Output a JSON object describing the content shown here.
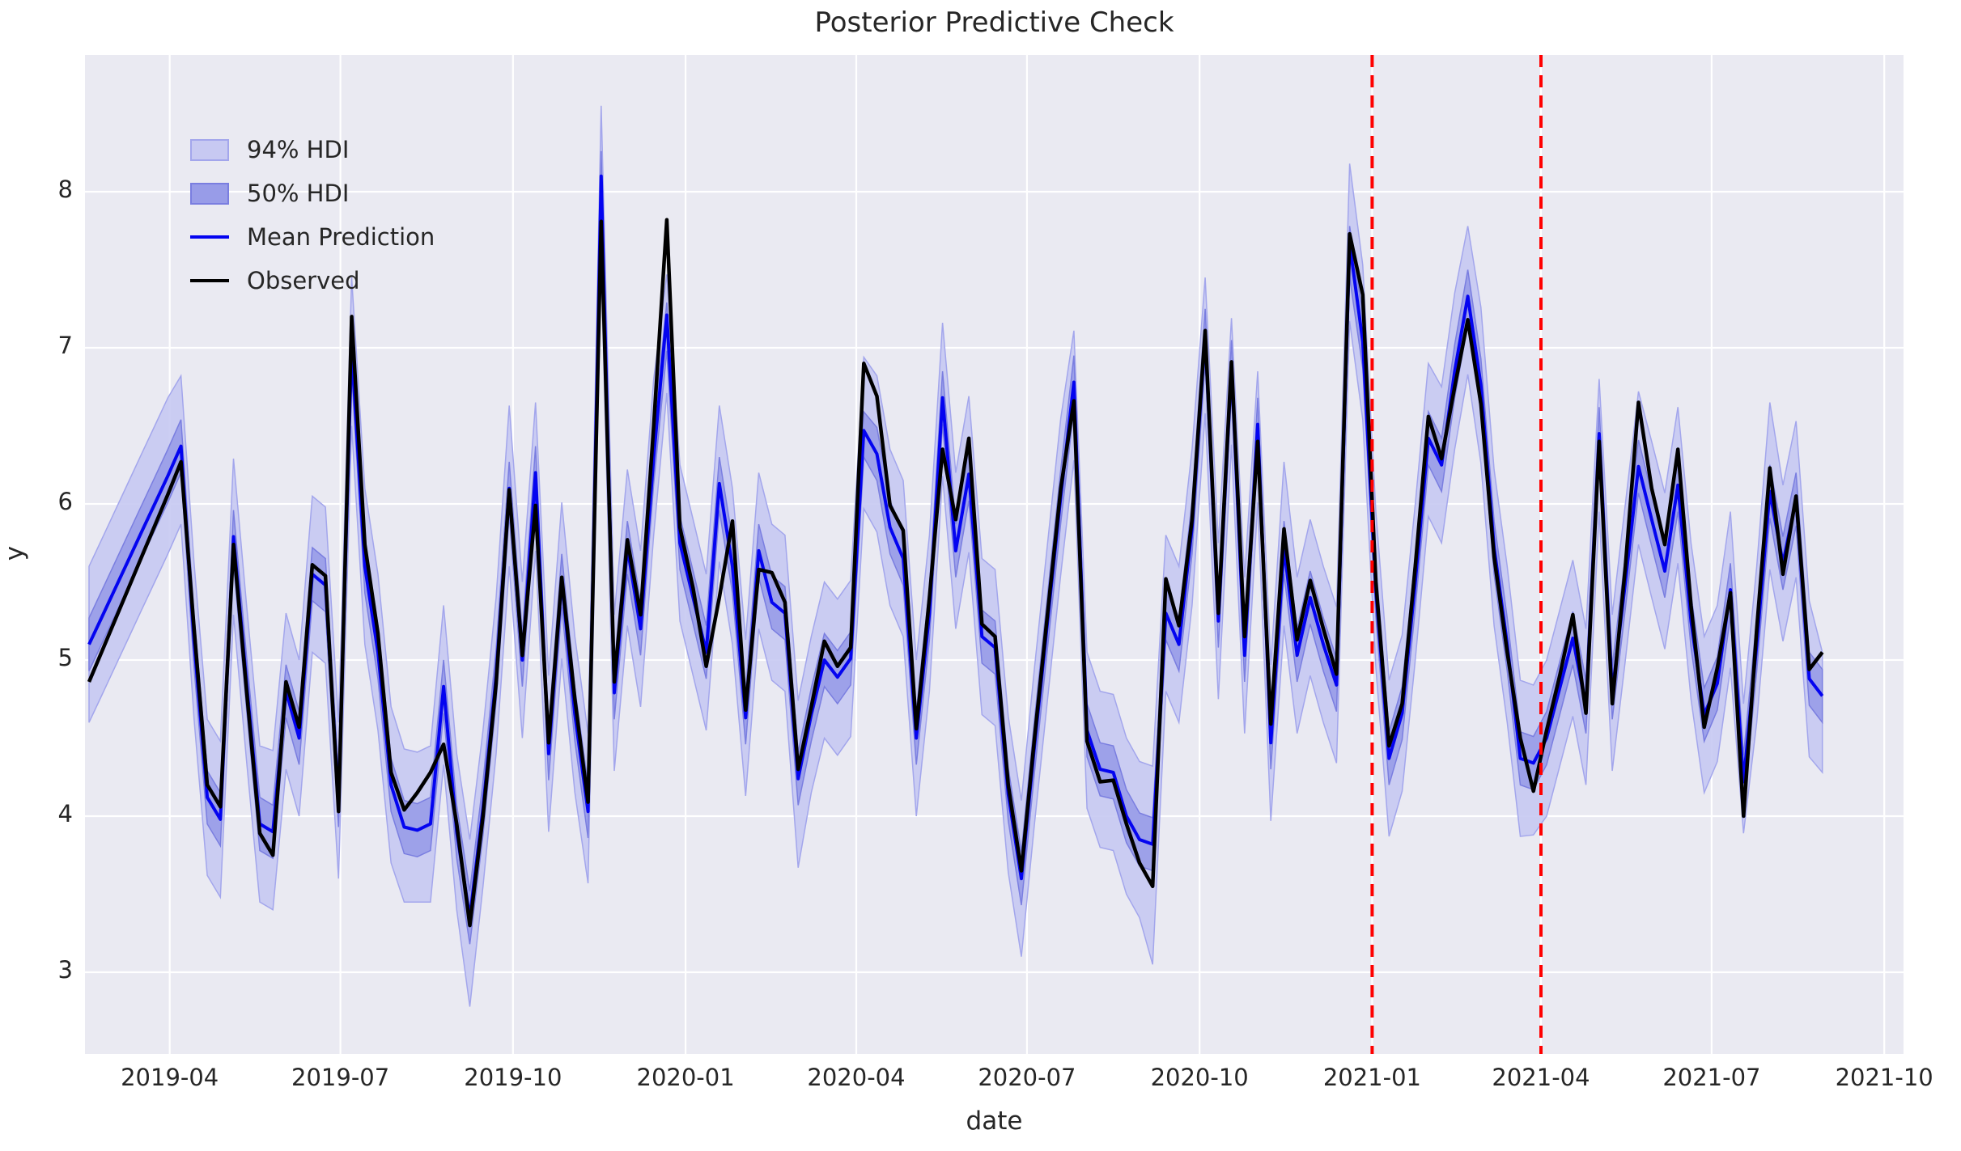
{
  "title": "Posterior Predictive Check",
  "axes": {
    "xlabel": "date",
    "ylabel": "y",
    "yticks": [
      8,
      7,
      6,
      5,
      4,
      3
    ],
    "xticks": [
      {
        "label": "2019-04",
        "date": "2019-04-01"
      },
      {
        "label": "2019-07",
        "date": "2019-07-01"
      },
      {
        "label": "2019-10",
        "date": "2019-10-01"
      },
      {
        "label": "2020-01",
        "date": "2020-01-01"
      },
      {
        "label": "2020-04",
        "date": "2020-04-01"
      },
      {
        "label": "2020-07",
        "date": "2020-07-01"
      },
      {
        "label": "2020-10",
        "date": "2020-10-01"
      },
      {
        "label": "2021-01",
        "date": "2021-01-01"
      },
      {
        "label": "2021-04",
        "date": "2021-04-01"
      },
      {
        "label": "2021-07",
        "date": "2021-07-01"
      },
      {
        "label": "2021-10",
        "date": "2021-10-01"
      }
    ]
  },
  "legend": [
    {
      "label": "94% HDI",
      "type": "patch",
      "fill": "#c7c9f2",
      "stroke": "#a3a6ec"
    },
    {
      "label": "50% HDI",
      "type": "patch",
      "fill": "#989ce8",
      "stroke": "#7a7ee0"
    },
    {
      "label": "Mean Prediction",
      "type": "line",
      "color": "#0404f0"
    },
    {
      "label": "Observed",
      "type": "line",
      "color": "#000000"
    }
  ],
  "colors": {
    "plot_bg": "#eaeaf2",
    "grid": "#ffffff",
    "hdi94_fill": "#c7c9f2",
    "hdi94_edge": "#a3a6ec",
    "hdi50_fill": "#989ce8",
    "hdi50_edge": "#7a7ee0",
    "mean_line": "#0404f0",
    "observed_line": "#000000",
    "event_line": "#ff0000",
    "text": "#262626"
  },
  "event_lines": {
    "dates": [
      "2021-01-01",
      "2021-04-01"
    ],
    "style": "dashed"
  },
  "chart_data": {
    "type": "line",
    "title": "Posterior Predictive Check",
    "xlabel": "date",
    "ylabel": "y",
    "ylim": [
      2.48,
      8.88
    ],
    "x_start_date": "2019-02-17",
    "x_freq_days": 7,
    "n_points": 133,
    "legend_position": "upper left",
    "grid": true,
    "series": [
      {
        "name": "Observed",
        "values": [
          4.86,
          5.06,
          5.26,
          5.46,
          5.66,
          5.86,
          6.06,
          6.27,
          5.2,
          4.2,
          4.06,
          5.74,
          4.8,
          3.89,
          3.75,
          4.86,
          4.57,
          5.61,
          5.54,
          4.03,
          7.2,
          5.74,
          5.17,
          4.28,
          4.04,
          4.15,
          4.28,
          4.46,
          3.95,
          3.3,
          4.0,
          4.85,
          6.09,
          5.03,
          5.99,
          4.47,
          5.53,
          4.75,
          4.09,
          7.81,
          4.86,
          5.77,
          5.29,
          6.5,
          7.82,
          5.85,
          5.46,
          4.96,
          5.4,
          5.89,
          4.68,
          5.58,
          5.56,
          5.37,
          4.3,
          4.7,
          5.12,
          4.96,
          5.08,
          6.9,
          6.69,
          5.99,
          5.83,
          4.56,
          5.4,
          6.35,
          5.9,
          6.42,
          5.23,
          5.15,
          4.2,
          3.65,
          4.5,
          5.3,
          6.1,
          6.66,
          4.48,
          4.22,
          4.23,
          3.95,
          3.7,
          3.55,
          5.52,
          5.22,
          5.9,
          7.11,
          5.3,
          6.91,
          5.15,
          6.4,
          4.59,
          5.84,
          5.13,
          5.51,
          5.2,
          4.91,
          7.73,
          7.34,
          5.5,
          4.45,
          4.72,
          5.6,
          6.56,
          6.29,
          6.75,
          7.18,
          6.64,
          5.66,
          5.05,
          4.5,
          4.16,
          4.55,
          4.9,
          5.29,
          4.66,
          6.4,
          4.72,
          5.6,
          6.65,
          6.1,
          5.74,
          6.35,
          5.35,
          4.57,
          4.95,
          5.43,
          4.0,
          5.2,
          6.23,
          5.55,
          6.05,
          4.94,
          5.05
        ]
      },
      {
        "name": "Mean Prediction",
        "values": [
          5.1,
          5.28,
          5.46,
          5.64,
          5.82,
          6.0,
          6.18,
          6.37,
          5.12,
          4.12,
          3.98,
          5.79,
          4.85,
          3.95,
          3.9,
          4.8,
          4.5,
          5.55,
          5.48,
          4.1,
          7.0,
          5.6,
          5.05,
          4.2,
          3.93,
          3.91,
          3.95,
          4.83,
          3.9,
          3.35,
          4.05,
          4.9,
          6.1,
          5.0,
          6.2,
          4.4,
          5.51,
          4.65,
          4.03,
          8.1,
          4.79,
          5.72,
          5.2,
          6.3,
          7.21,
          5.75,
          5.4,
          5.05,
          6.13,
          5.6,
          4.63,
          5.7,
          5.37,
          5.3,
          4.24,
          4.65,
          5.0,
          4.89,
          5.01,
          6.47,
          6.32,
          5.85,
          5.65,
          4.5,
          5.3,
          6.68,
          5.7,
          6.19,
          5.15,
          5.08,
          4.14,
          3.6,
          4.45,
          5.25,
          6.05,
          6.78,
          4.55,
          4.3,
          4.28,
          4.0,
          3.85,
          3.82,
          5.3,
          5.1,
          5.85,
          7.08,
          5.25,
          6.88,
          5.03,
          6.51,
          4.47,
          5.72,
          5.03,
          5.4,
          5.1,
          4.84,
          7.67,
          7.04,
          5.45,
          4.37,
          4.66,
          5.5,
          6.42,
          6.25,
          6.85,
          7.33,
          6.76,
          5.72,
          5.1,
          4.37,
          4.34,
          4.5,
          4.82,
          5.14,
          4.7,
          6.45,
          4.79,
          5.5,
          6.24,
          5.9,
          5.57,
          6.12,
          5.25,
          4.65,
          4.85,
          5.45,
          4.22,
          5.1,
          6.08,
          5.62,
          6.03,
          4.88,
          4.77
        ]
      }
    ],
    "bands": {
      "hdi94": {
        "lo": [
          4.6,
          4.78,
          4.96,
          5.14,
          5.32,
          5.5,
          5.68,
          5.87,
          4.62,
          3.62,
          3.48,
          5.29,
          4.35,
          3.45,
          3.4,
          4.3,
          4.0,
          5.05,
          4.98,
          3.6,
          6.5,
          5.1,
          4.55,
          3.7,
          3.45,
          3.45,
          3.45,
          4.33,
          3.4,
          2.78,
          3.55,
          4.4,
          5.6,
          4.5,
          5.7,
          3.9,
          5.01,
          4.15,
          3.57,
          7.55,
          4.29,
          5.22,
          4.7,
          5.8,
          6.71,
          5.25,
          4.9,
          4.55,
          5.63,
          5.1,
          4.13,
          5.2,
          4.87,
          4.8,
          3.67,
          4.15,
          4.5,
          4.39,
          4.51,
          5.97,
          5.82,
          5.35,
          5.15,
          4.0,
          4.8,
          6.18,
          5.2,
          5.69,
          4.65,
          4.58,
          3.64,
          3.1,
          3.95,
          4.75,
          5.55,
          6.28,
          4.05,
          3.8,
          3.78,
          3.5,
          3.35,
          3.05,
          4.8,
          4.6,
          5.35,
          6.58,
          4.75,
          6.38,
          4.53,
          6.01,
          3.97,
          5.22,
          4.53,
          4.9,
          4.6,
          4.34,
          7.17,
          6.54,
          4.95,
          3.87,
          4.16,
          5.0,
          5.92,
          5.75,
          6.35,
          6.83,
          6.26,
          5.22,
          4.6,
          3.87,
          3.88,
          4.0,
          4.32,
          4.64,
          4.2,
          5.95,
          4.29,
          5.0,
          5.74,
          5.4,
          5.07,
          5.62,
          4.75,
          4.15,
          4.35,
          4.95,
          3.89,
          4.6,
          5.58,
          5.12,
          5.53,
          4.38,
          4.28
        ],
        "hi": [
          5.6,
          5.78,
          5.96,
          6.14,
          6.32,
          6.5,
          6.68,
          6.82,
          5.62,
          4.62,
          4.48,
          6.29,
          5.35,
          4.45,
          4.42,
          5.3,
          5.0,
          6.05,
          5.98,
          4.6,
          7.45,
          6.1,
          5.55,
          4.7,
          4.43,
          4.41,
          4.45,
          5.35,
          4.4,
          3.85,
          4.55,
          5.4,
          6.63,
          5.5,
          6.65,
          4.9,
          6.01,
          5.15,
          4.53,
          8.55,
          5.29,
          6.22,
          5.7,
          6.8,
          7.47,
          6.25,
          5.9,
          5.55,
          6.63,
          6.1,
          5.13,
          6.2,
          5.87,
          5.8,
          4.74,
          5.15,
          5.5,
          5.39,
          5.51,
          6.94,
          6.82,
          6.35,
          6.15,
          5.0,
          5.8,
          7.16,
          6.2,
          6.69,
          5.65,
          5.58,
          4.64,
          4.1,
          4.95,
          5.75,
          6.55,
          7.11,
          5.05,
          4.8,
          4.78,
          4.5,
          4.35,
          4.32,
          5.8,
          5.6,
          6.35,
          7.45,
          5.75,
          7.19,
          5.53,
          6.85,
          4.97,
          6.27,
          5.53,
          5.9,
          5.6,
          5.34,
          8.18,
          7.53,
          5.95,
          4.87,
          5.16,
          6.0,
          6.9,
          6.75,
          7.35,
          7.78,
          7.26,
          6.22,
          5.6,
          4.87,
          4.84,
          5.0,
          5.32,
          5.64,
          5.2,
          6.8,
          5.29,
          6.0,
          6.72,
          6.4,
          6.07,
          6.62,
          5.75,
          5.15,
          5.35,
          5.95,
          4.72,
          5.6,
          6.65,
          6.12,
          6.53,
          5.38,
          5.05
        ]
      },
      "hdi50": {
        "lo": [
          4.93,
          5.11,
          5.29,
          5.47,
          5.65,
          5.83,
          6.01,
          6.2,
          4.95,
          3.95,
          3.81,
          5.62,
          4.68,
          3.78,
          3.73,
          4.63,
          4.33,
          5.38,
          5.31,
          3.93,
          6.83,
          5.43,
          4.88,
          4.03,
          3.76,
          3.74,
          3.78,
          4.66,
          3.73,
          3.18,
          3.88,
          4.73,
          5.93,
          4.83,
          6.03,
          4.23,
          5.34,
          4.48,
          3.86,
          7.95,
          4.62,
          5.55,
          5.03,
          6.13,
          6.98,
          5.58,
          5.23,
          4.88,
          5.96,
          5.43,
          4.46,
          5.53,
          5.2,
          5.13,
          4.07,
          4.48,
          4.83,
          4.72,
          4.84,
          6.3,
          6.15,
          5.68,
          5.48,
          4.33,
          5.13,
          6.51,
          5.53,
          6.02,
          4.98,
          4.91,
          3.97,
          3.43,
          4.28,
          5.08,
          5.88,
          6.61,
          4.38,
          4.13,
          4.11,
          3.83,
          3.68,
          3.65,
          5.13,
          4.93,
          5.68,
          6.91,
          5.08,
          6.71,
          4.86,
          6.34,
          4.3,
          5.55,
          4.86,
          5.23,
          4.93,
          4.67,
          7.45,
          6.87,
          5.28,
          4.2,
          4.49,
          5.33,
          6.25,
          6.08,
          6.68,
          7.15,
          6.59,
          5.55,
          4.93,
          4.2,
          4.17,
          4.33,
          4.65,
          4.97,
          4.53,
          6.28,
          4.62,
          5.33,
          6.07,
          5.73,
          5.4,
          5.95,
          5.08,
          4.48,
          4.68,
          5.28,
          4.05,
          4.93,
          5.91,
          5.45,
          5.86,
          4.71,
          4.6
        ],
        "hi": [
          5.27,
          5.45,
          5.63,
          5.81,
          5.99,
          6.17,
          6.35,
          6.54,
          5.29,
          4.29,
          4.15,
          5.96,
          5.02,
          4.12,
          4.07,
          4.97,
          4.67,
          5.72,
          5.65,
          4.27,
          7.17,
          5.77,
          5.22,
          4.37,
          4.1,
          4.08,
          4.12,
          5.0,
          4.07,
          3.52,
          4.22,
          5.07,
          6.27,
          5.17,
          6.37,
          4.57,
          5.68,
          4.82,
          4.2,
          8.26,
          4.96,
          5.89,
          5.37,
          6.47,
          7.29,
          5.92,
          5.57,
          5.22,
          6.3,
          5.77,
          4.8,
          5.87,
          5.54,
          5.47,
          4.41,
          4.82,
          5.17,
          5.06,
          5.18,
          6.59,
          6.49,
          6.02,
          5.82,
          4.67,
          5.47,
          6.85,
          5.87,
          6.36,
          5.32,
          5.25,
          4.31,
          3.77,
          4.62,
          5.42,
          6.22,
          6.95,
          4.72,
          4.47,
          4.45,
          4.17,
          4.02,
          3.99,
          5.47,
          5.27,
          6.02,
          7.25,
          5.42,
          7.05,
          5.2,
          6.68,
          4.64,
          5.89,
          5.2,
          5.57,
          5.27,
          5.01,
          7.78,
          7.21,
          5.62,
          4.54,
          4.83,
          5.67,
          6.59,
          6.42,
          7.02,
          7.5,
          6.93,
          5.89,
          5.27,
          4.54,
          4.51,
          4.67,
          4.99,
          5.31,
          4.87,
          6.62,
          4.96,
          5.67,
          6.41,
          6.07,
          5.74,
          6.29,
          5.42,
          4.82,
          5.02,
          5.62,
          4.39,
          5.27,
          6.25,
          5.79,
          6.2,
          5.05,
          4.94
        ]
      }
    },
    "annotations": [
      "vertical dashed red line at 2021-01-01",
      "vertical dashed red line at 2021-04-01"
    ]
  }
}
